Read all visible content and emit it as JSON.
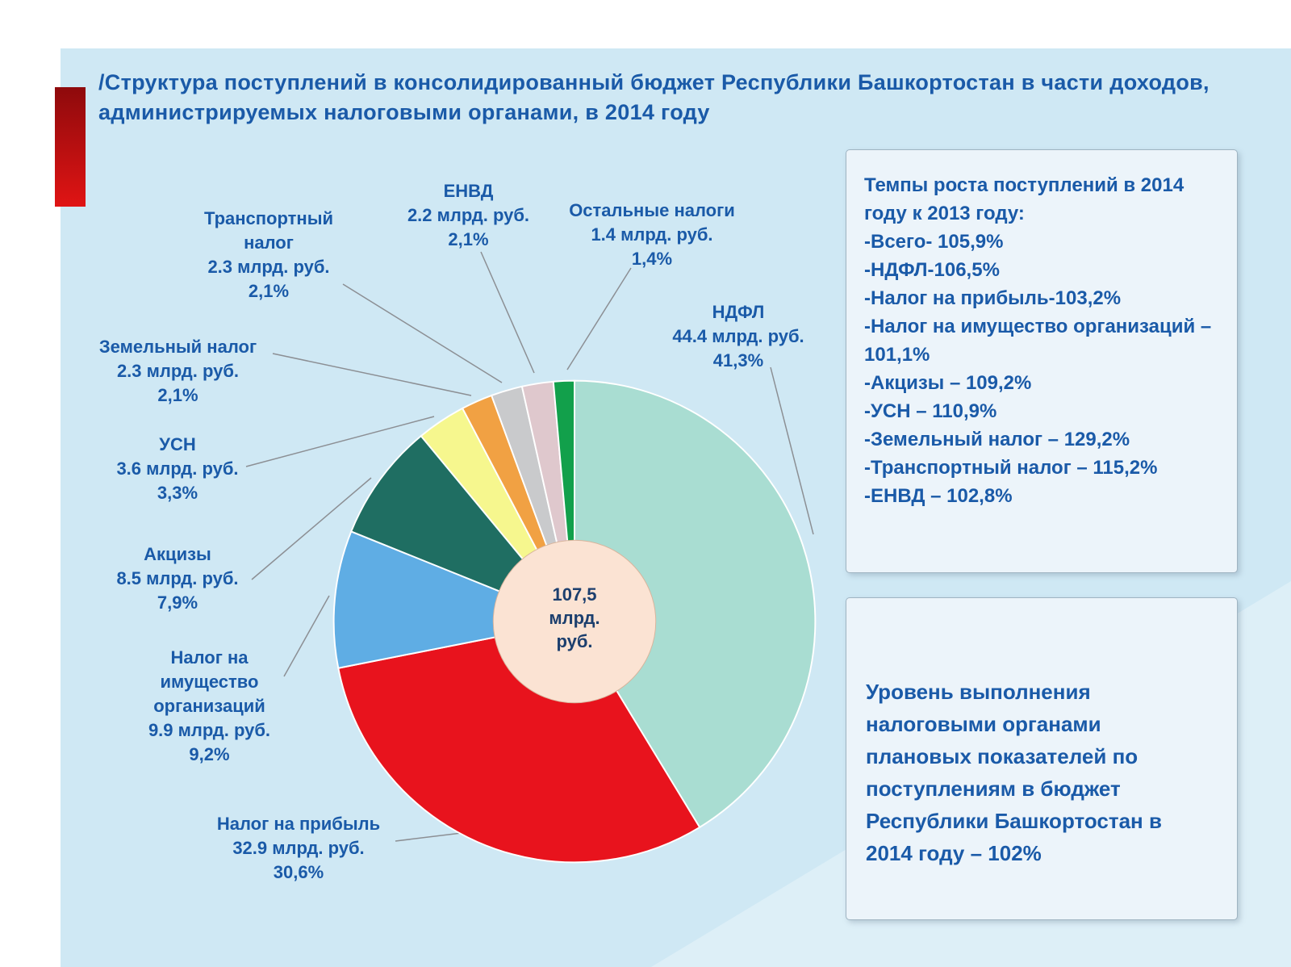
{
  "chart_data": {
    "type": "pie",
    "title": "/Структура поступлений в консолидированный  бюджет Республики Башкортостан в части доходов, администрируемых налоговыми органами, в 2014 году",
    "units": "млрд. руб.",
    "total_value": 107.5,
    "center_label_lines": [
      "107,5",
      "млрд.",
      "руб."
    ],
    "center_fill": "#fbe3d3",
    "legend_position": "callouts",
    "segments": [
      {
        "name": "НДФЛ",
        "value": 44.4,
        "percent": 41.3,
        "amount_label": "44.4 млрд. руб.",
        "percent_label": "41,3%",
        "color": "#a9ddd2",
        "callout_lines": [
          "НДФЛ",
          "44.4 млрд. руб.",
          "41,3%"
        ]
      },
      {
        "name": "Налог на прибыль",
        "value": 32.9,
        "percent": 30.6,
        "amount_label": "32.9 млрд. руб.",
        "percent_label": "30,6%",
        "color": "#e8131d",
        "callout_lines": [
          "Налог на прибыль",
          "32.9 млрд. руб.",
          "30,6%"
        ]
      },
      {
        "name": "Налог на имущество организаций",
        "value": 9.9,
        "percent": 9.2,
        "amount_label": "9.9 млрд. руб.",
        "percent_label": "9,2%",
        "color": "#5fade4",
        "callout_lines": [
          "Налог на",
          "имущество",
          "организаций",
          "9.9 млрд. руб.",
          "9,2%"
        ]
      },
      {
        "name": "Акцизы",
        "value": 8.5,
        "percent": 7.9,
        "amount_label": "8.5 млрд. руб.",
        "percent_label": "7,9%",
        "color": "#1f6e62",
        "callout_lines": [
          "Акцизы",
          "8.5 млрд. руб.",
          "7,9%"
        ]
      },
      {
        "name": "УСН",
        "value": 3.6,
        "percent": 3.3,
        "amount_label": "3.6 млрд. руб.",
        "percent_label": "3,3%",
        "color": "#f6f78e",
        "callout_lines": [
          "УСН",
          "3.6 млрд. руб.",
          "3,3%"
        ]
      },
      {
        "name": "Земельный налог",
        "value": 2.3,
        "percent": 2.1,
        "amount_label": "2.3 млрд. руб.",
        "percent_label": "2,1%",
        "color": "#f1a143",
        "callout_lines": [
          "Земельный налог",
          "2.3 млрд. руб.",
          "2,1%"
        ]
      },
      {
        "name": "Транспортный налог",
        "value": 2.3,
        "percent": 2.1,
        "amount_label": "2.3 млрд. руб.",
        "percent_label": "2,1%",
        "color": "#c9cacc",
        "callout_lines": [
          "Транспортный",
          "налог",
          "2.3 млрд. руб.",
          "2,1%"
        ]
      },
      {
        "name": "ЕНВД",
        "value": 2.2,
        "percent": 2.1,
        "amount_label": "2.2 млрд. руб.",
        "percent_label": "2,1%",
        "color": "#dfc8cd",
        "callout_lines": [
          "ЕНВД",
          "2.2 млрд. руб.",
          "2,1%"
        ]
      },
      {
        "name": "Остальные налоги",
        "value": 1.4,
        "percent": 1.4,
        "amount_label": "1.4 млрд. руб.",
        "percent_label": "1,4%",
        "color": "#12a04b",
        "callout_lines": [
          "Остальные налоги",
          "1.4 млрд. руб.",
          "1,4%"
        ]
      }
    ]
  },
  "growth_box": {
    "lines": [
      "Темпы роста поступлений в 2014 году к 2013 году:",
      "-Всего- 105,9%",
      "-НДФЛ-106,5%",
      "-Налог на прибыль-103,2%",
      "-Налог на имущество организаций – 101,1%",
      "-Акцизы – 109,2%",
      "-УСН – 110,9%",
      "-Земельный налог – 129,2%",
      "-Транспортный налог – 115,2%",
      "-ЕНВД – 102,8%"
    ]
  },
  "plan_box": {
    "lines": [
      "Уровень выполнения",
      "налоговыми органами",
      "плановых показателей по",
      "поступлениям в бюджет",
      "Республики Башкортостан в",
      "2014 году – 102%"
    ]
  },
  "colors": {
    "background": "#cfe8f4",
    "text_blue": "#1a5aa8",
    "panel_bg": "#ecf4fa",
    "accent_red": "#d11414"
  }
}
